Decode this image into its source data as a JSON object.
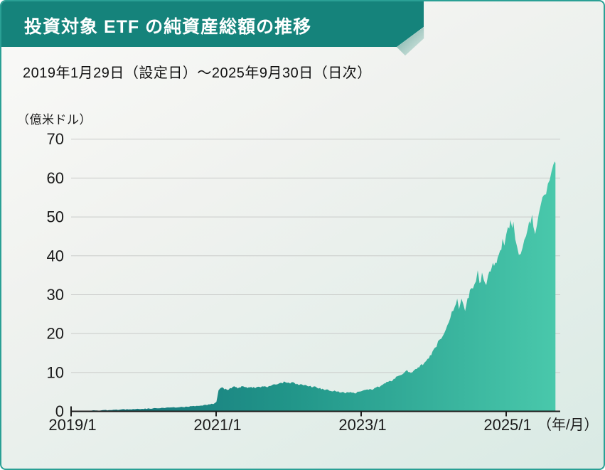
{
  "header": {
    "title": "投資対象 ETF の純資産総額の推移",
    "subtitle": "2019年1月29日（設定日）～2025年9月30日（日次）"
  },
  "colors": {
    "banner": "#15837b",
    "page_border": "#2aa095",
    "area_gradient_start": "#136f79",
    "area_gradient_mid": "#219589",
    "area_gradient_end": "#49c8ab",
    "grid": "#c9cbc9",
    "axis": "#1c1c1c",
    "text": "#1a1a1a"
  },
  "chart_data": {
    "type": "area",
    "title": "投資対象 ETF の純資産総額の推移",
    "subtitle": "2019年1月29日（設定日）～2025年9月30日（日次）",
    "unit_label": "（億米ドル）",
    "x_axis_suffix_label": "（年/月）",
    "series_name": "純資産総額",
    "grid": true,
    "legend": "none",
    "ylim": [
      0,
      70
    ],
    "y_ticks": [
      0,
      10,
      20,
      30,
      40,
      50,
      60,
      70
    ],
    "x_tick_labels": [
      "2019/1",
      "2021/1",
      "2023/1",
      "2025/1"
    ],
    "x_tick_months": [
      0,
      24,
      48,
      72
    ],
    "x_range_months": [
      0.9,
      80.15
    ],
    "noise_amp": 0.5,
    "points": [
      [
        0.9,
        0.05
      ],
      [
        2,
        0.1
      ],
      [
        3,
        0.15
      ],
      [
        4,
        0.2
      ],
      [
        5,
        0.25
      ],
      [
        6,
        0.3
      ],
      [
        7,
        0.35
      ],
      [
        8,
        0.45
      ],
      [
        9,
        0.5
      ],
      [
        10,
        0.55
      ],
      [
        11,
        0.6
      ],
      [
        12,
        0.65
      ],
      [
        13,
        0.72
      ],
      [
        14,
        0.78
      ],
      [
        15,
        0.85
      ],
      [
        16,
        0.92
      ],
      [
        17,
        1.0
      ],
      [
        18,
        1.1
      ],
      [
        19,
        1.18
      ],
      [
        20,
        1.3
      ],
      [
        21,
        1.45
      ],
      [
        22,
        1.6
      ],
      [
        23,
        1.8
      ],
      [
        23.8,
        2.05
      ],
      [
        24.05,
        2.4
      ],
      [
        24.2,
        3.6
      ],
      [
        24.4,
        5.3
      ],
      [
        24.7,
        6.0
      ],
      [
        25,
        6.15
      ],
      [
        25.4,
        5.8
      ],
      [
        25.8,
        5.5
      ],
      [
        26.3,
        5.95
      ],
      [
        27,
        6.25
      ],
      [
        27.6,
        5.95
      ],
      [
        28.2,
        6.35
      ],
      [
        29,
        6.1
      ],
      [
        29.6,
        6.3
      ],
      [
        30.2,
        6.05
      ],
      [
        31,
        6.2
      ],
      [
        31.6,
        6.45
      ],
      [
        32.2,
        6.25
      ],
      [
        33,
        6.6
      ],
      [
        33.6,
        6.9
      ],
      [
        34.2,
        7.1
      ],
      [
        35,
        7.4
      ],
      [
        35.5,
        7.55
      ],
      [
        36,
        7.3
      ],
      [
        36.5,
        7.45
      ],
      [
        37,
        7.15
      ],
      [
        37.6,
        6.85
      ],
      [
        38.2,
        7.0
      ],
      [
        39,
        6.6
      ],
      [
        39.6,
        6.4
      ],
      [
        40.2,
        6.25
      ],
      [
        41,
        5.95
      ],
      [
        41.6,
        5.75
      ],
      [
        42.2,
        5.6
      ],
      [
        43,
        5.35
      ],
      [
        43.6,
        5.2
      ],
      [
        44.2,
        5.05
      ],
      [
        45,
        4.9
      ],
      [
        45.6,
        4.75
      ],
      [
        46.2,
        4.85
      ],
      [
        47,
        4.7
      ],
      [
        47.6,
        5.0
      ],
      [
        48.2,
        5.45
      ],
      [
        49,
        5.75
      ],
      [
        49.6,
        5.55
      ],
      [
        50.2,
        5.95
      ],
      [
        51,
        6.35
      ],
      [
        51.6,
        6.9
      ],
      [
        52.2,
        7.35
      ],
      [
        53,
        7.95
      ],
      [
        53.6,
        8.6
      ],
      [
        54.2,
        9.2
      ],
      [
        55,
        9.8
      ],
      [
        55.6,
        10.3
      ],
      [
        56.2,
        10.05
      ],
      [
        57,
        10.6
      ],
      [
        57.6,
        11.3
      ],
      [
        58.2,
        12.2
      ],
      [
        59,
        13.5
      ],
      [
        59.6,
        14.7
      ],
      [
        60.2,
        16.3
      ],
      [
        61,
        18.5
      ],
      [
        61.5,
        19.8
      ],
      [
        62,
        21.5
      ],
      [
        62.5,
        23.2
      ],
      [
        63,
        25.2
      ],
      [
        63.5,
        27.6
      ],
      [
        63.9,
        28.9
      ],
      [
        64.2,
        26.9
      ],
      [
        64.6,
        29.4
      ],
      [
        64.9,
        28.1
      ],
      [
        65.2,
        25.9
      ],
      [
        65.6,
        29.1
      ],
      [
        66,
        30.6
      ],
      [
        66.5,
        31.9
      ],
      [
        67,
        33.6
      ],
      [
        67.3,
        35.9
      ],
      [
        67.6,
        32.6
      ],
      [
        68,
        35.4
      ],
      [
        68.3,
        33.9
      ],
      [
        68.7,
        32.9
      ],
      [
        69,
        34.6
      ],
      [
        69.4,
        36.3
      ],
      [
        69.8,
        37.4
      ],
      [
        70.2,
        38.4
      ],
      [
        70.6,
        39.4
      ],
      [
        71,
        40.8
      ],
      [
        71.4,
        43.4
      ],
      [
        71.7,
        42.2
      ],
      [
        72,
        44.6
      ],
      [
        72.3,
        46.6
      ],
      [
        72.5,
        48.1
      ],
      [
        72.7,
        49.8
      ],
      [
        73,
        47.1
      ],
      [
        73.2,
        48.6
      ],
      [
        73.5,
        45.1
      ],
      [
        73.8,
        42.1
      ],
      [
        74.1,
        39.6
      ],
      [
        74.4,
        41.1
      ],
      [
        74.7,
        42.6
      ],
      [
        75,
        44.1
      ],
      [
        75.3,
        45.6
      ],
      [
        75.6,
        47.1
      ],
      [
        76,
        48.6
      ],
      [
        76.3,
        50.1
      ],
      [
        76.5,
        48.1
      ],
      [
        76.8,
        45.1
      ],
      [
        77.1,
        47.6
      ],
      [
        77.4,
        50.6
      ],
      [
        77.7,
        52.6
      ],
      [
        78,
        54.1
      ],
      [
        78.3,
        55.6
      ],
      [
        78.6,
        57.1
      ],
      [
        78.9,
        58.1
      ],
      [
        79.2,
        59.6
      ],
      [
        79.5,
        61.1
      ],
      [
        79.8,
        62.3
      ],
      [
        80.03,
        64.8
      ],
      [
        80.15,
        63.9
      ]
    ]
  }
}
